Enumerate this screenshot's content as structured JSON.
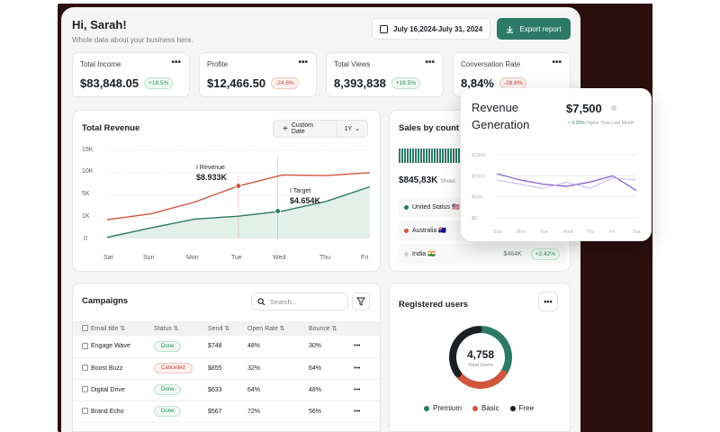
{
  "header": {
    "greeting": "Hi, Sarah!",
    "subtitle": "Whole data about your business here.",
    "date_range": "July 16,2024-July 31, 2024",
    "export_label": "Export report"
  },
  "stats": [
    {
      "label": "Total Income",
      "value": "$83,848.05",
      "change": "+18.5%",
      "trend": "up"
    },
    {
      "label": "Profite",
      "value": "$12,466.50",
      "change": "-24.8%",
      "trend": "down"
    },
    {
      "label": "Total Views",
      "value": "8,393,838",
      "change": "+16.5%",
      "trend": "up"
    },
    {
      "label": "Conversation Rate",
      "value": "8,84%",
      "change": "-28.8%",
      "trend": "down"
    }
  ],
  "stat_menu_glyph": "•••",
  "revenue": {
    "title": "Total Revenue",
    "custom_date": "Custom Date",
    "period": "1Y",
    "revenue_tip_label": "I Revenue",
    "revenue_tip_value": "$8.933K",
    "target_tip_label": "I Target",
    "target_tip_value": "$4.654K",
    "y_ticks": [
      "15K",
      "10K",
      "5K",
      "1K",
      "0"
    ],
    "x_ticks": [
      "Sat",
      "Sun",
      "Mon",
      "Tue",
      "Wed",
      "Thu",
      "Fri"
    ]
  },
  "sales": {
    "title": "Sales by count",
    "total": "$845,83K",
    "total_suffix": "Showi",
    "countries": [
      {
        "name": "United Status 🇺🇸",
        "color": "#2c7a66"
      },
      {
        "name": "Australia 🇦🇺",
        "color": "#d2553d"
      },
      {
        "name": "India 🇮🇳",
        "color": "#cfd2d1",
        "value": "$484K",
        "change": "+2.42%"
      }
    ]
  },
  "popup": {
    "title": "Revenue Generation",
    "amount": "$7,500",
    "mini_change": "0.20%",
    "mini_text": "Higher Than Last Month",
    "y_ticks": [
      "$1500",
      "$1000",
      "$500",
      "$0"
    ],
    "x_ticks": [
      "Sun",
      "Mon",
      "Tue",
      "Wed",
      "Thu",
      "Fri",
      "Sat"
    ]
  },
  "campaigns": {
    "title": "Campaigns",
    "search_placeholder": "Search...",
    "columns": [
      "Email title",
      "Status",
      "Send",
      "Open Rate",
      "Bounce"
    ],
    "rows": [
      {
        "title": "Engage Wave",
        "status": "Done",
        "send": "$748",
        "open": "48%",
        "bounce": "30%"
      },
      {
        "title": "Boost Buzz",
        "status": "Cancelled",
        "send": "$855",
        "open": "32%",
        "bounce": "64%"
      },
      {
        "title": "Digital Drive",
        "status": "Done",
        "send": "$633",
        "open": "64%",
        "bounce": "48%"
      },
      {
        "title": "Brand Echo",
        "status": "Done",
        "send": "$567",
        "open": "72%",
        "bounce": "56%"
      }
    ],
    "row_menu_glyph": "•••"
  },
  "users": {
    "title": "Registered users",
    "total": "4,758",
    "total_label": "Total Users",
    "legend": [
      {
        "label": "Premium",
        "color": "#2c7a66"
      },
      {
        "label": "Basic",
        "color": "#d2553d"
      },
      {
        "label": "Free",
        "color": "#1b1f23"
      }
    ]
  },
  "colors": {
    "accent": "#2c7a66",
    "danger": "#c2483e",
    "revenue_line": "#d2553d",
    "purple_line": "#8a6ad6"
  },
  "chart_data": [
    {
      "type": "line",
      "title": "Total Revenue",
      "categories": [
        "Sat",
        "Sun",
        "Mon",
        "Tue",
        "Wed",
        "Thu",
        "Fri"
      ],
      "series": [
        {
          "name": "Revenue",
          "values": [
            3200,
            4200,
            6200,
            8933,
            10800,
            10700,
            11200
          ]
        },
        {
          "name": "Target",
          "values": [
            200,
            1800,
            3300,
            3800,
            4654,
            6300,
            8800
          ]
        }
      ],
      "ylim": [
        0,
        15000
      ],
      "y_tick_labels": [
        "15K",
        "10K",
        "5K",
        "1K",
        "0"
      ]
    },
    {
      "type": "line",
      "title": "Revenue Generation",
      "categories": [
        "Sun",
        "Mon",
        "Tue",
        "Wed",
        "Thu",
        "Fri",
        "Sat"
      ],
      "series": [
        {
          "values": [
            1050,
            900,
            800,
            750,
            850,
            1000,
            650
          ]
        },
        {
          "values": [
            900,
            800,
            700,
            850,
            700,
            950,
            900
          ]
        }
      ],
      "ylim": [
        0,
        1500
      ]
    },
    {
      "type": "pie",
      "title": "Registered users",
      "categories": [
        "Premium",
        "Basic",
        "Free"
      ],
      "values": [
        35,
        30,
        35
      ]
    }
  ]
}
